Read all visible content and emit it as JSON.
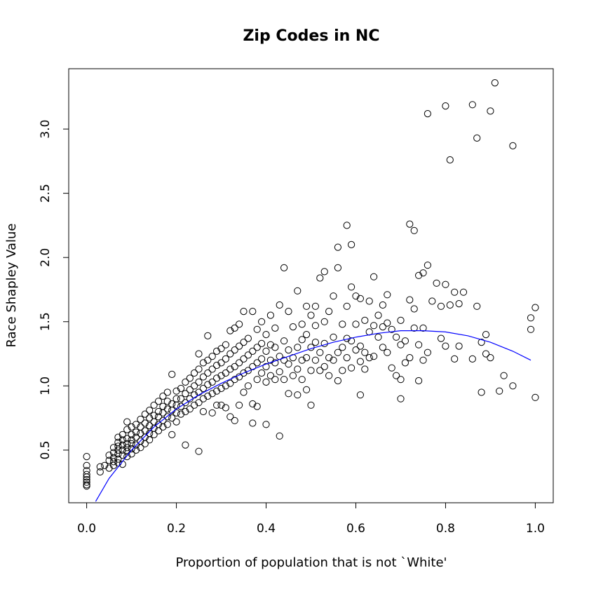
{
  "chart_data": {
    "type": "scatter",
    "title": "Zip Codes in NC",
    "xlabel": "Proportion of population that is not `White'",
    "ylabel": "Race Shapley Value",
    "xlim": [
      -0.04,
      1.04
    ],
    "ylim": [
      0.09,
      3.47
    ],
    "x_ticks": [
      0.0,
      0.2,
      0.4,
      0.6,
      0.8,
      1.0
    ],
    "x_tick_labels": [
      "0.0",
      "0.2",
      "0.4",
      "0.6",
      "0.8",
      "1.0"
    ],
    "y_ticks": [
      0.5,
      1.0,
      1.5,
      2.0,
      2.5,
      3.0
    ],
    "y_tick_labels": [
      "0.5",
      "1.0",
      "1.5",
      "2.0",
      "2.5",
      "3.0"
    ],
    "grid": false,
    "point_color": "#000000",
    "fit_color": "#0000ff",
    "points": [
      [
        0.0,
        0.45
      ],
      [
        0.0,
        0.38
      ],
      [
        0.0,
        0.34
      ],
      [
        0.0,
        0.31
      ],
      [
        0.0,
        0.29
      ],
      [
        0.0,
        0.27
      ],
      [
        0.0,
        0.25
      ],
      [
        0.0,
        0.23
      ],
      [
        0.0,
        0.22
      ],
      [
        0.03,
        0.33
      ],
      [
        0.03,
        0.37
      ],
      [
        0.04,
        0.38
      ],
      [
        0.05,
        0.36
      ],
      [
        0.05,
        0.42
      ],
      [
        0.05,
        0.46
      ],
      [
        0.06,
        0.38
      ],
      [
        0.06,
        0.41
      ],
      [
        0.06,
        0.44
      ],
      [
        0.06,
        0.48
      ],
      [
        0.06,
        0.52
      ],
      [
        0.07,
        0.4
      ],
      [
        0.07,
        0.43
      ],
      [
        0.07,
        0.47
      ],
      [
        0.07,
        0.5
      ],
      [
        0.07,
        0.53
      ],
      [
        0.07,
        0.56
      ],
      [
        0.07,
        0.6
      ],
      [
        0.08,
        0.39
      ],
      [
        0.08,
        0.46
      ],
      [
        0.08,
        0.5
      ],
      [
        0.08,
        0.54
      ],
      [
        0.08,
        0.58
      ],
      [
        0.08,
        0.62
      ],
      [
        0.09,
        0.45
      ],
      [
        0.09,
        0.49
      ],
      [
        0.09,
        0.52
      ],
      [
        0.09,
        0.55
      ],
      [
        0.09,
        0.59
      ],
      [
        0.09,
        0.66
      ],
      [
        0.09,
        0.72
      ],
      [
        0.1,
        0.47
      ],
      [
        0.1,
        0.51
      ],
      [
        0.1,
        0.55
      ],
      [
        0.1,
        0.58
      ],
      [
        0.1,
        0.62
      ],
      [
        0.1,
        0.68
      ],
      [
        0.11,
        0.5
      ],
      [
        0.11,
        0.54
      ],
      [
        0.11,
        0.6
      ],
      [
        0.11,
        0.64
      ],
      [
        0.11,
        0.7
      ],
      [
        0.12,
        0.52
      ],
      [
        0.12,
        0.57
      ],
      [
        0.12,
        0.63
      ],
      [
        0.12,
        0.68
      ],
      [
        0.12,
        0.74
      ],
      [
        0.13,
        0.55
      ],
      [
        0.13,
        0.6
      ],
      [
        0.13,
        0.65
      ],
      [
        0.13,
        0.71
      ],
      [
        0.13,
        0.78
      ],
      [
        0.14,
        0.58
      ],
      [
        0.14,
        0.63
      ],
      [
        0.14,
        0.69
      ],
      [
        0.14,
        0.75
      ],
      [
        0.14,
        0.81
      ],
      [
        0.15,
        0.62
      ],
      [
        0.15,
        0.67
      ],
      [
        0.15,
        0.72
      ],
      [
        0.15,
        0.77
      ],
      [
        0.15,
        0.85
      ],
      [
        0.16,
        0.65
      ],
      [
        0.16,
        0.7
      ],
      [
        0.16,
        0.76
      ],
      [
        0.16,
        0.8
      ],
      [
        0.16,
        0.88
      ],
      [
        0.17,
        0.68
      ],
      [
        0.17,
        0.73
      ],
      [
        0.17,
        0.79
      ],
      [
        0.17,
        0.84
      ],
      [
        0.17,
        0.92
      ],
      [
        0.18,
        0.7
      ],
      [
        0.18,
        0.76
      ],
      [
        0.18,
        0.82
      ],
      [
        0.18,
        0.88
      ],
      [
        0.18,
        0.95
      ],
      [
        0.19,
        0.62
      ],
      [
        0.19,
        0.75
      ],
      [
        0.19,
        0.81
      ],
      [
        0.19,
        0.86
      ],
      [
        0.19,
        1.09
      ],
      [
        0.2,
        0.72
      ],
      [
        0.2,
        0.79
      ],
      [
        0.2,
        0.85
      ],
      [
        0.2,
        0.9
      ],
      [
        0.2,
        0.96
      ],
      [
        0.21,
        0.78
      ],
      [
        0.21,
        0.84
      ],
      [
        0.21,
        0.9
      ],
      [
        0.21,
        0.98
      ],
      [
        0.22,
        0.54
      ],
      [
        0.22,
        0.8
      ],
      [
        0.22,
        0.87
      ],
      [
        0.22,
        0.94
      ],
      [
        0.22,
        1.03
      ],
      [
        0.23,
        0.82
      ],
      [
        0.23,
        0.9
      ],
      [
        0.23,
        0.97
      ],
      [
        0.23,
        1.06
      ],
      [
        0.24,
        0.85
      ],
      [
        0.24,
        0.93
      ],
      [
        0.24,
        1.0
      ],
      [
        0.24,
        1.1
      ],
      [
        0.25,
        0.49
      ],
      [
        0.25,
        0.87
      ],
      [
        0.25,
        0.95
      ],
      [
        0.25,
        1.03
      ],
      [
        0.25,
        1.13
      ],
      [
        0.25,
        1.25
      ],
      [
        0.26,
        0.8
      ],
      [
        0.26,
        0.9
      ],
      [
        0.26,
        0.98
      ],
      [
        0.26,
        1.07
      ],
      [
        0.26,
        1.18
      ],
      [
        0.27,
        1.39
      ],
      [
        0.27,
        0.92
      ],
      [
        0.27,
        1.01
      ],
      [
        0.27,
        1.1
      ],
      [
        0.27,
        1.2
      ],
      [
        0.28,
        0.79
      ],
      [
        0.28,
        0.94
      ],
      [
        0.28,
        1.03
      ],
      [
        0.28,
        1.13
      ],
      [
        0.28,
        1.23
      ],
      [
        0.29,
        0.85
      ],
      [
        0.29,
        0.96
      ],
      [
        0.29,
        1.06
      ],
      [
        0.29,
        1.16
      ],
      [
        0.29,
        1.27
      ],
      [
        0.3,
        0.85
      ],
      [
        0.3,
        0.98
      ],
      [
        0.3,
        1.08
      ],
      [
        0.3,
        1.18
      ],
      [
        0.3,
        1.29
      ],
      [
        0.31,
        0.83
      ],
      [
        0.31,
        1.0
      ],
      [
        0.31,
        1.1
      ],
      [
        0.31,
        1.21
      ],
      [
        0.31,
        1.32
      ],
      [
        0.32,
        0.76
      ],
      [
        0.32,
        1.02
      ],
      [
        0.32,
        1.13
      ],
      [
        0.32,
        1.25
      ],
      [
        0.32,
        1.43
      ],
      [
        0.33,
        0.73
      ],
      [
        0.33,
        1.05
      ],
      [
        0.33,
        1.15
      ],
      [
        0.33,
        1.28
      ],
      [
        0.33,
        1.45
      ],
      [
        0.34,
        0.85
      ],
      [
        0.34,
        1.07
      ],
      [
        0.34,
        1.18
      ],
      [
        0.34,
        1.31
      ],
      [
        0.34,
        1.48
      ],
      [
        0.35,
        0.95
      ],
      [
        0.35,
        1.1
      ],
      [
        0.35,
        1.21
      ],
      [
        0.35,
        1.34
      ],
      [
        0.35,
        1.58
      ],
      [
        0.36,
        1.0
      ],
      [
        0.36,
        1.12
      ],
      [
        0.36,
        1.24
      ],
      [
        0.36,
        1.37
      ],
      [
        0.37,
        1.58
      ],
      [
        0.37,
        0.86
      ],
      [
        0.37,
        0.71
      ],
      [
        0.37,
        1.15
      ],
      [
        0.37,
        1.27
      ],
      [
        0.38,
        0.84
      ],
      [
        0.38,
        1.05
      ],
      [
        0.38,
        1.18
      ],
      [
        0.38,
        1.3
      ],
      [
        0.38,
        1.44
      ],
      [
        0.39,
        1.1
      ],
      [
        0.39,
        1.21
      ],
      [
        0.39,
        1.33
      ],
      [
        0.39,
        1.5
      ],
      [
        0.4,
        0.7
      ],
      [
        0.4,
        1.03
      ],
      [
        0.4,
        1.15
      ],
      [
        0.4,
        1.27
      ],
      [
        0.4,
        1.4
      ],
      [
        0.41,
        1.08
      ],
      [
        0.41,
        1.2
      ],
      [
        0.41,
        1.32
      ],
      [
        0.41,
        1.55
      ],
      [
        0.42,
        1.05
      ],
      [
        0.42,
        1.18
      ],
      [
        0.42,
        1.3
      ],
      [
        0.42,
        1.45
      ],
      [
        0.43,
        0.61
      ],
      [
        0.43,
        1.11
      ],
      [
        0.43,
        1.23
      ],
      [
        0.43,
        1.63
      ],
      [
        0.44,
        1.05
      ],
      [
        0.44,
        1.2
      ],
      [
        0.44,
        1.35
      ],
      [
        0.44,
        1.92
      ],
      [
        0.45,
        0.94
      ],
      [
        0.45,
        1.17
      ],
      [
        0.45,
        1.28
      ],
      [
        0.45,
        1.58
      ],
      [
        0.46,
        1.08
      ],
      [
        0.46,
        1.22
      ],
      [
        0.46,
        1.46
      ],
      [
        0.47,
        0.93
      ],
      [
        0.47,
        1.13
      ],
      [
        0.47,
        1.3
      ],
      [
        0.47,
        1.74
      ],
      [
        0.48,
        1.05
      ],
      [
        0.48,
        1.2
      ],
      [
        0.48,
        1.36
      ],
      [
        0.48,
        1.48
      ],
      [
        0.49,
        0.97
      ],
      [
        0.49,
        1.22
      ],
      [
        0.49,
        1.4
      ],
      [
        0.49,
        1.62
      ],
      [
        0.5,
        0.85
      ],
      [
        0.5,
        1.12
      ],
      [
        0.5,
        1.3
      ],
      [
        0.5,
        1.55
      ],
      [
        0.51,
        1.2
      ],
      [
        0.51,
        1.34
      ],
      [
        0.51,
        1.47
      ],
      [
        0.51,
        1.62
      ],
      [
        0.52,
        1.12
      ],
      [
        0.52,
        1.26
      ],
      [
        0.52,
        1.84
      ],
      [
        0.53,
        1.89
      ],
      [
        0.53,
        1.15
      ],
      [
        0.53,
        1.33
      ],
      [
        0.53,
        1.5
      ],
      [
        0.54,
        1.08
      ],
      [
        0.54,
        1.22
      ],
      [
        0.54,
        1.58
      ],
      [
        0.55,
        1.2
      ],
      [
        0.55,
        1.38
      ],
      [
        0.55,
        1.7
      ],
      [
        0.56,
        2.08
      ],
      [
        0.56,
        1.04
      ],
      [
        0.56,
        1.26
      ],
      [
        0.56,
        1.92
      ],
      [
        0.57,
        1.12
      ],
      [
        0.57,
        1.3
      ],
      [
        0.57,
        1.48
      ],
      [
        0.58,
        1.22
      ],
      [
        0.58,
        1.37
      ],
      [
        0.58,
        1.62
      ],
      [
        0.58,
        2.25
      ],
      [
        0.59,
        1.14
      ],
      [
        0.59,
        1.35
      ],
      [
        0.59,
        1.77
      ],
      [
        0.59,
        2.1
      ],
      [
        0.6,
        1.28
      ],
      [
        0.6,
        1.48
      ],
      [
        0.6,
        1.7
      ],
      [
        0.61,
        0.93
      ],
      [
        0.61,
        1.19
      ],
      [
        0.61,
        1.31
      ],
      [
        0.61,
        1.68
      ],
      [
        0.62,
        1.13
      ],
      [
        0.62,
        1.26
      ],
      [
        0.62,
        1.51
      ],
      [
        0.63,
        1.22
      ],
      [
        0.63,
        1.42
      ],
      [
        0.63,
        1.66
      ],
      [
        0.64,
        1.85
      ],
      [
        0.64,
        1.23
      ],
      [
        0.64,
        1.47
      ],
      [
        0.65,
        1.38
      ],
      [
        0.65,
        1.55
      ],
      [
        0.66,
        1.3
      ],
      [
        0.66,
        1.46
      ],
      [
        0.66,
        1.63
      ],
      [
        0.67,
        1.26
      ],
      [
        0.67,
        1.49
      ],
      [
        0.67,
        1.71
      ],
      [
        0.68,
        1.14
      ],
      [
        0.68,
        1.44
      ],
      [
        0.69,
        1.08
      ],
      [
        0.69,
        1.38
      ],
      [
        0.7,
        0.9
      ],
      [
        0.7,
        1.05
      ],
      [
        0.7,
        1.32
      ],
      [
        0.7,
        1.51
      ],
      [
        0.71,
        1.18
      ],
      [
        0.71,
        1.35
      ],
      [
        0.72,
        2.26
      ],
      [
        0.72,
        1.22
      ],
      [
        0.72,
        1.67
      ],
      [
        0.73,
        2.21
      ],
      [
        0.73,
        1.45
      ],
      [
        0.73,
        1.6
      ],
      [
        0.74,
        1.04
      ],
      [
        0.74,
        1.32
      ],
      [
        0.74,
        1.86
      ],
      [
        0.75,
        1.2
      ],
      [
        0.75,
        1.45
      ],
      [
        0.75,
        1.88
      ],
      [
        0.76,
        1.94
      ],
      [
        0.76,
        3.12
      ],
      [
        0.76,
        1.26
      ],
      [
        0.77,
        1.66
      ],
      [
        0.78,
        1.8
      ],
      [
        0.79,
        1.37
      ],
      [
        0.79,
        1.62
      ],
      [
        0.8,
        3.18
      ],
      [
        0.8,
        1.31
      ],
      [
        0.8,
        1.79
      ],
      [
        0.81,
        2.76
      ],
      [
        0.81,
        1.63
      ],
      [
        0.82,
        1.21
      ],
      [
        0.82,
        1.73
      ],
      [
        0.83,
        1.64
      ],
      [
        0.83,
        1.31
      ],
      [
        0.84,
        1.73
      ],
      [
        0.86,
        3.19
      ],
      [
        0.86,
        1.21
      ],
      [
        0.87,
        2.93
      ],
      [
        0.87,
        1.62
      ],
      [
        0.88,
        0.95
      ],
      [
        0.88,
        1.34
      ],
      [
        0.89,
        1.4
      ],
      [
        0.89,
        1.25
      ],
      [
        0.9,
        3.14
      ],
      [
        0.9,
        1.22
      ],
      [
        0.91,
        3.36
      ],
      [
        0.92,
        0.96
      ],
      [
        0.93,
        1.08
      ],
      [
        0.95,
        2.87
      ],
      [
        0.95,
        1.0
      ],
      [
        0.99,
        1.44
      ],
      [
        0.99,
        1.53
      ],
      [
        1.0,
        1.61
      ],
      [
        1.0,
        0.91
      ]
    ],
    "fit": {
      "label": "",
      "x": [
        0.02,
        0.05,
        0.1,
        0.15,
        0.2,
        0.25,
        0.3,
        0.35,
        0.4,
        0.45,
        0.5,
        0.55,
        0.6,
        0.65,
        0.7,
        0.75,
        0.8,
        0.85,
        0.9,
        0.95,
        0.99
      ],
      "y": [
        0.1,
        0.28,
        0.5,
        0.68,
        0.82,
        0.93,
        1.02,
        1.1,
        1.17,
        1.23,
        1.29,
        1.34,
        1.38,
        1.41,
        1.43,
        1.43,
        1.42,
        1.39,
        1.34,
        1.27,
        1.2
      ]
    }
  }
}
